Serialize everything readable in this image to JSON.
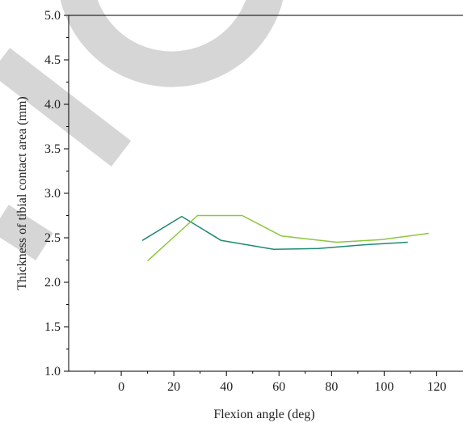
{
  "chart_data": {
    "type": "line",
    "title": "",
    "xlabel": "Flexion angle (deg)",
    "ylabel": "Thickness of tibial contact area (mm)",
    "xlim": [
      -20,
      130
    ],
    "ylim": [
      1.0,
      5.0
    ],
    "x_ticks": [
      0,
      20,
      40,
      60,
      80,
      100,
      120
    ],
    "x_tick_labels": [
      "0",
      "20",
      "40",
      "60",
      "80",
      "100",
      "120"
    ],
    "y_ticks": [
      1.0,
      1.5,
      2.0,
      2.5,
      3.0,
      3.5,
      4.0,
      4.5,
      5.0
    ],
    "y_tick_labels": [
      "1.0",
      "1.5",
      "2.0",
      "2.5",
      "3.0",
      "3.5",
      "4.0",
      "4.5",
      "5.0"
    ],
    "grid": false,
    "series": [
      {
        "color": "#1f8a70",
        "x": [
          8,
          23,
          38,
          58,
          75,
          92,
          109
        ],
        "y": [
          2.47,
          2.74,
          2.47,
          2.37,
          2.38,
          2.42,
          2.45
        ]
      },
      {
        "color": "#8cc63f",
        "x": [
          10,
          29,
          46,
          61,
          82,
          99,
          117
        ],
        "y": [
          2.24,
          2.75,
          2.75,
          2.52,
          2.45,
          2.48,
          2.55
        ]
      }
    ],
    "watermark_color": "#d6d6d6"
  }
}
